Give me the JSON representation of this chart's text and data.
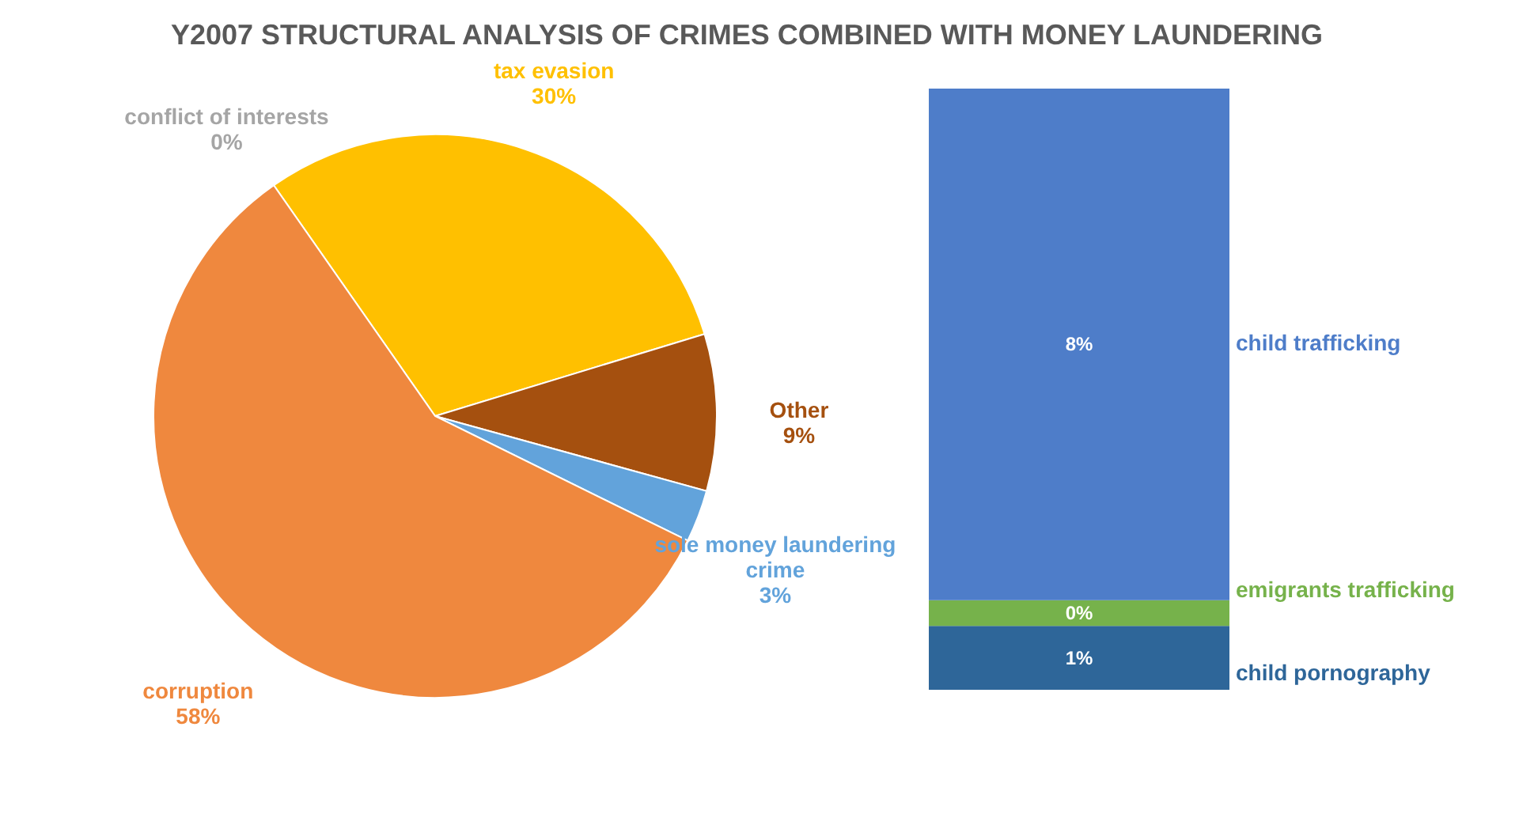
{
  "chart_data": [
    {
      "type": "pie",
      "title": "Y2007 STRUCTURAL ANALYSIS OF CRIMES COMBINED WITH MONEY LAUNDERING",
      "categories": [
        "conflict of interests",
        "tax evasion",
        "Other",
        "sole money laundering crime",
        "corruption"
      ],
      "values": [
        0,
        30,
        9,
        3,
        58
      ],
      "colors": [
        "#a5a5a5",
        "#ffc000",
        "#a5500f",
        "#62a3db",
        "#ef883e"
      ],
      "value_labels": [
        "0%",
        "30%",
        "9%",
        "3%",
        "58%"
      ]
    },
    {
      "type": "bar",
      "stacked": true,
      "categories": [
        null
      ],
      "series": [
        {
          "name": "child pornography",
          "color": "#2e6699",
          "values": [
            1
          ],
          "value_labels": [
            "1%"
          ]
        },
        {
          "name": "emigrants trafficking",
          "color": "#76b24b",
          "values": [
            0.4
          ],
          "value_labels": [
            "0%"
          ]
        },
        {
          "name": "child trafficking",
          "color": "#4e7dc9",
          "values": [
            8
          ],
          "value_labels": [
            "8%"
          ]
        }
      ]
    }
  ]
}
